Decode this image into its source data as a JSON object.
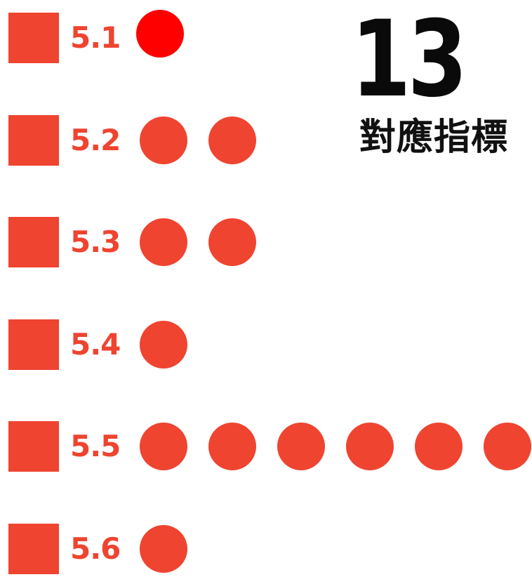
{
  "chart_data": {
    "type": "dot-matrix",
    "categories": [
      "5.1",
      "5.2",
      "5.3",
      "5.4",
      "5.5",
      "5.6"
    ],
    "values": [
      1,
      2,
      2,
      1,
      6,
      1
    ],
    "total": "13",
    "total_label": "對應指標",
    "colors": {
      "primary": "#ef4430",
      "highlight": "#ff0000",
      "text_dark": "#0a0a0a"
    },
    "highlighted_dot": {
      "category": "5.1",
      "index": 0
    }
  }
}
